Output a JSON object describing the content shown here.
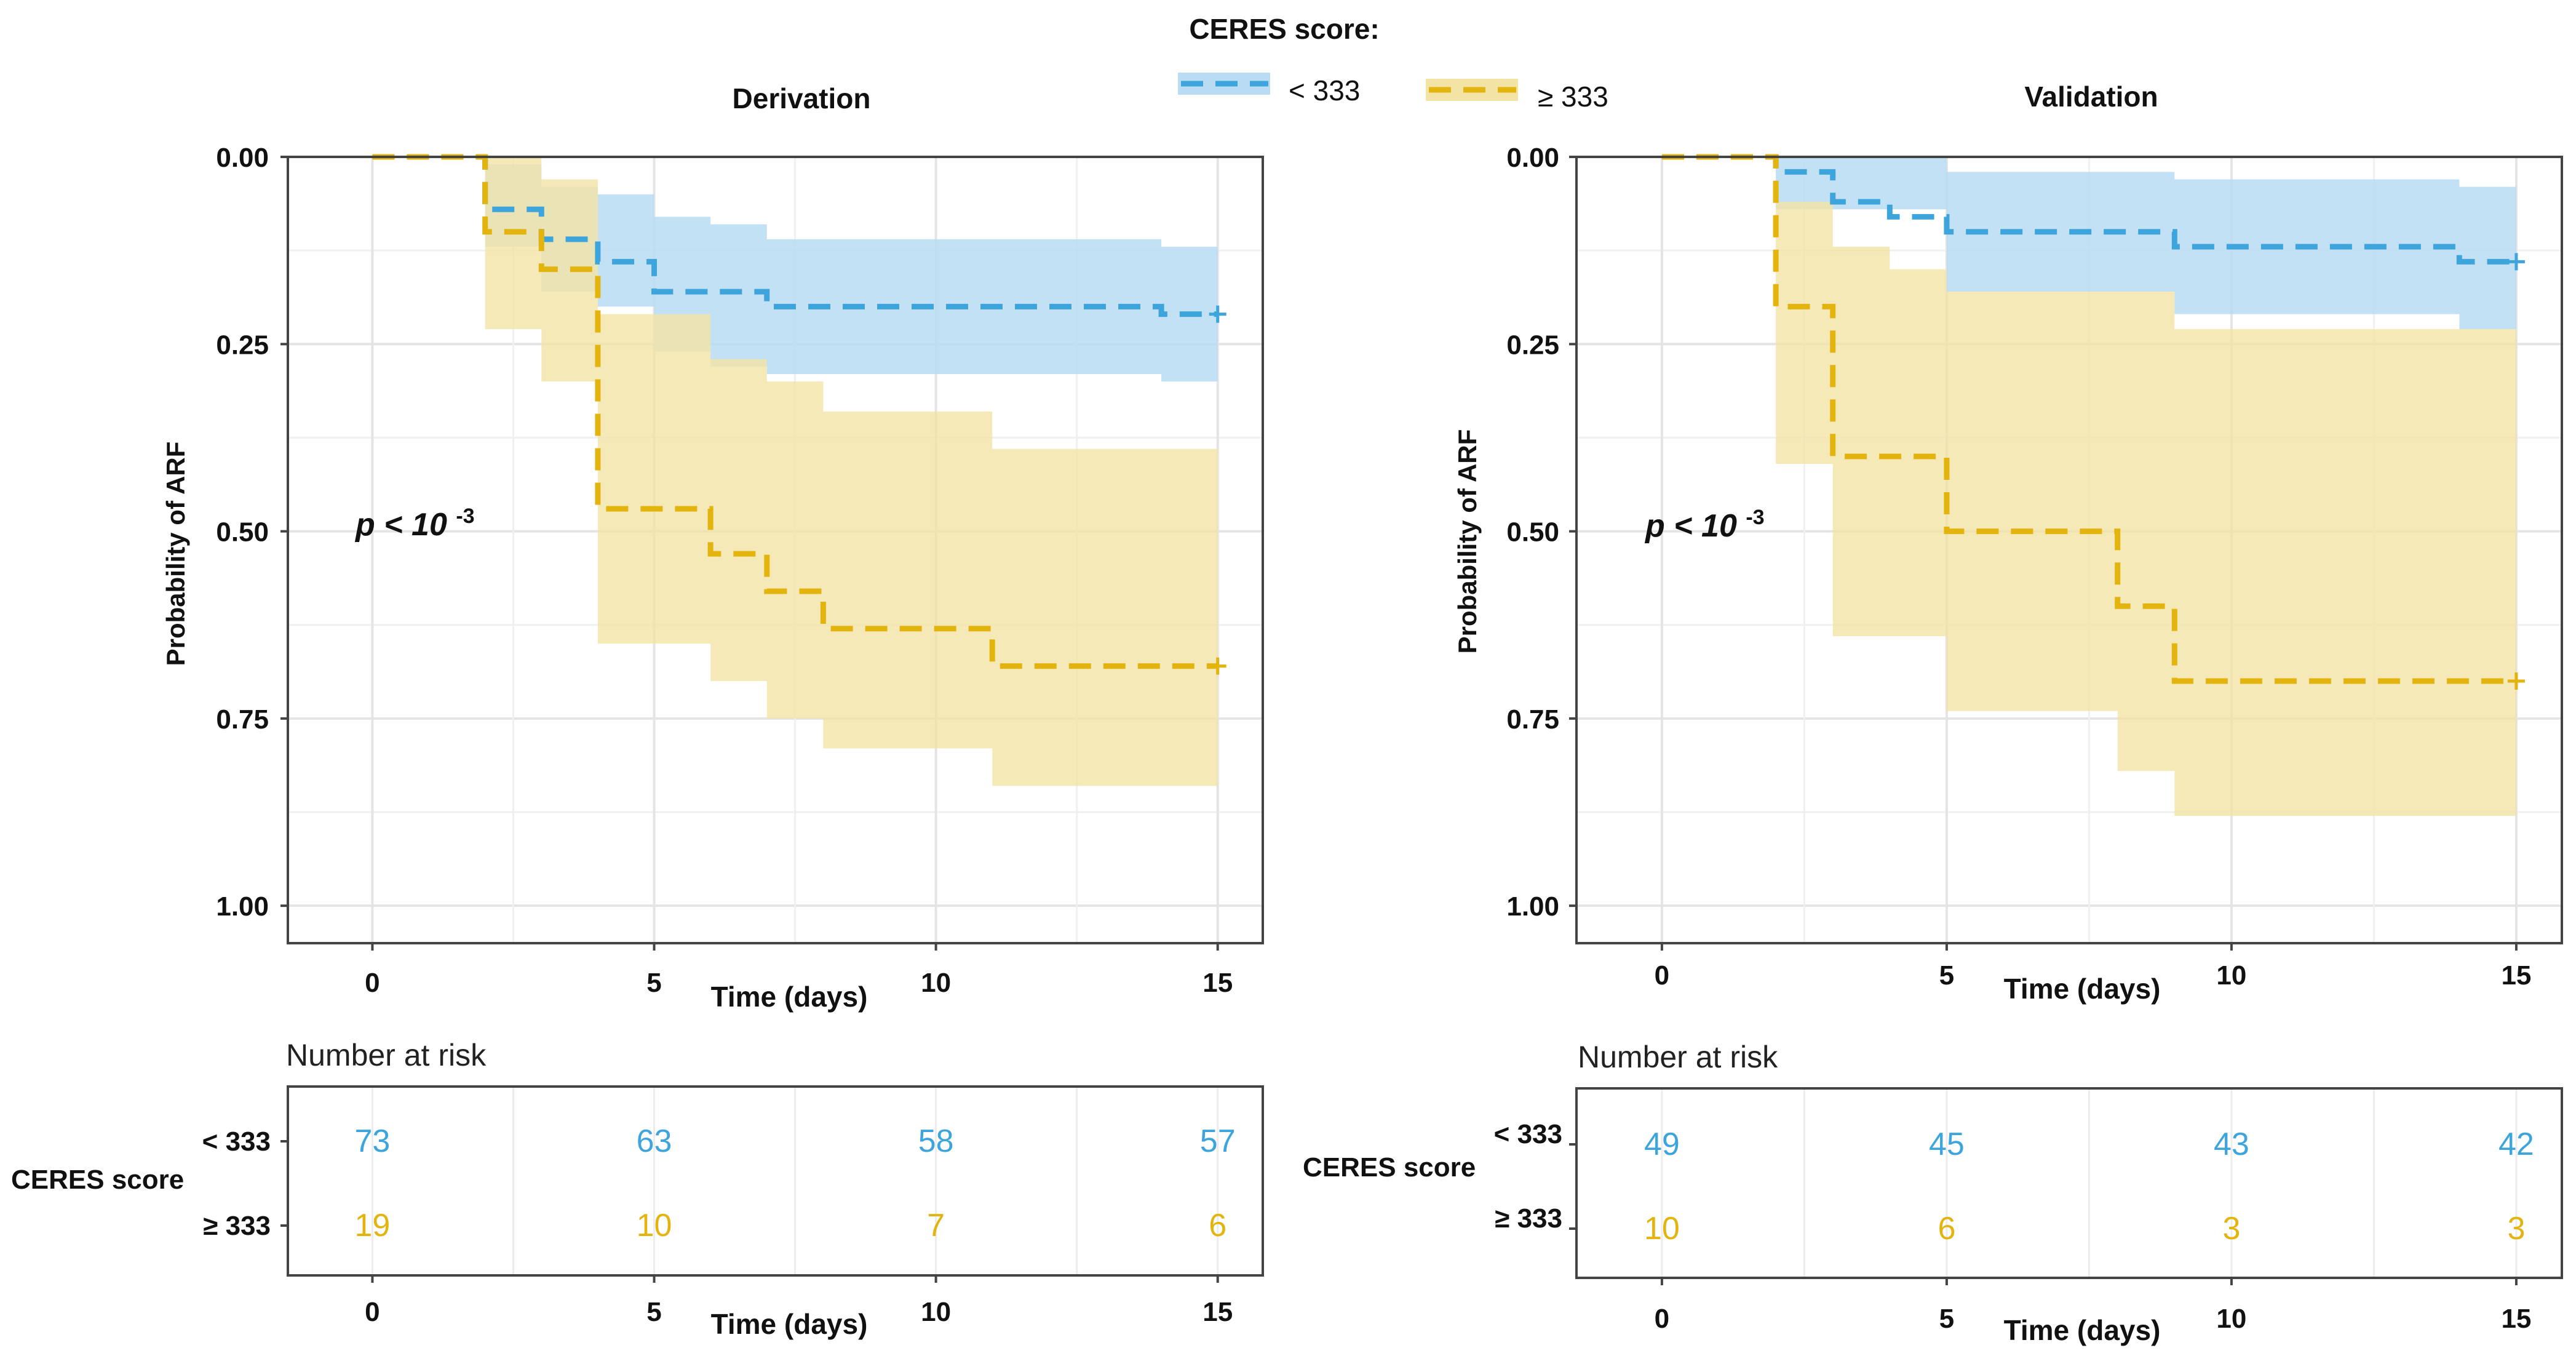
{
  "legend": {
    "title": "CERES score:",
    "items": [
      {
        "label": "< 333",
        "color": "#3ea5dc",
        "band": "#b9dcf2"
      },
      {
        "label": "≥ 333",
        "color": "#e4b40e",
        "band": "#f3e3a4"
      }
    ]
  },
  "chart_data": [
    {
      "type": "line",
      "subtype": "kaplan-meier step curve with confidence bands",
      "title": "Derivation",
      "xlabel": "Time (days)",
      "ylabel": "Probability of ARF",
      "xlim": [
        -1.5,
        15.8
      ],
      "ylim": [
        0,
        1.05
      ],
      "y_reversed": true,
      "x_ticks": [
        0,
        5,
        10,
        15
      ],
      "y_ticks": [
        0,
        0.25,
        0.5,
        0.75,
        1
      ],
      "y_tick_labels": [
        "0.00",
        "0.25",
        "0.50",
        "0.75",
        "1.00"
      ],
      "annotation": {
        "text": "p < 10",
        "exponent": "-3"
      },
      "series": [
        {
          "name": "< 333",
          "color": "#3ea5dc",
          "band": "#b9dcf2",
          "steps": [
            [
              0,
              0.0
            ],
            [
              2,
              0.07
            ],
            [
              3,
              0.11
            ],
            [
              4,
              0.14
            ],
            [
              5,
              0.18
            ],
            [
              7,
              0.2
            ],
            [
              14,
              0.21
            ],
            [
              15,
              0.21
            ]
          ],
          "ci": [
            [
              2,
              0.01,
              0.12
            ],
            [
              3,
              0.04,
              0.18
            ],
            [
              4,
              0.05,
              0.2
            ],
            [
              5,
              0.08,
              0.26
            ],
            [
              6,
              0.09,
              0.28
            ],
            [
              7,
              0.11,
              0.29
            ],
            [
              14,
              0.12,
              0.3
            ],
            [
              15,
              0.12,
              0.3
            ]
          ]
        },
        {
          "name": "≥ 333",
          "color": "#e4b40e",
          "band": "#f3e3a4",
          "steps": [
            [
              0,
              0.0
            ],
            [
              2,
              0.1
            ],
            [
              3,
              0.15
            ],
            [
              4,
              0.47
            ],
            [
              6,
              0.53
            ],
            [
              7,
              0.58
            ],
            [
              8,
              0.63
            ],
            [
              11,
              0.68
            ],
            [
              15,
              0.68
            ]
          ],
          "ci": [
            [
              2,
              0.0,
              0.23
            ],
            [
              3,
              0.03,
              0.3
            ],
            [
              4,
              0.21,
              0.65
            ],
            [
              6,
              0.27,
              0.7
            ],
            [
              7,
              0.3,
              0.75
            ],
            [
              8,
              0.34,
              0.79
            ],
            [
              11,
              0.39,
              0.84
            ],
            [
              15,
              0.39,
              0.84
            ]
          ]
        }
      ],
      "risk_table": {
        "title": "Number at risk",
        "group_label": "CERES score",
        "x_ticks": [
          0,
          5,
          10,
          15
        ],
        "xlabel": "Time (days)",
        "rows": [
          {
            "name": "< 333",
            "color": "#3ea5dc",
            "values": [
              "73",
              "63",
              "58",
              "57"
            ]
          },
          {
            "name": "≥ 333",
            "color": "#e4b40e",
            "values": [
              "19",
              "10",
              "7",
              "6"
            ]
          }
        ]
      }
    },
    {
      "type": "line",
      "subtype": "kaplan-meier step curve with confidence bands",
      "title": "Validation",
      "xlabel": "Time (days)",
      "ylabel": "Probability of ARF",
      "xlim": [
        -1.5,
        15.8
      ],
      "ylim": [
        0,
        1.05
      ],
      "y_reversed": true,
      "x_ticks": [
        0,
        5,
        10,
        15
      ],
      "y_ticks": [
        0,
        0.25,
        0.5,
        0.75,
        1
      ],
      "y_tick_labels": [
        "0.00",
        "0.25",
        "0.50",
        "0.75",
        "1.00"
      ],
      "annotation": {
        "text": "p < 10",
        "exponent": "-3"
      },
      "series": [
        {
          "name": "< 333",
          "color": "#3ea5dc",
          "band": "#b9dcf2",
          "steps": [
            [
              0,
              0.0
            ],
            [
              2,
              0.02
            ],
            [
              3,
              0.06
            ],
            [
              4,
              0.08
            ],
            [
              5,
              0.1
            ],
            [
              9,
              0.12
            ],
            [
              14,
              0.14
            ],
            [
              15,
              0.14
            ]
          ],
          "ci": [
            [
              2,
              0.0,
              0.07
            ],
            [
              5,
              0.02,
              0.18
            ],
            [
              9,
              0.03,
              0.21
            ],
            [
              14,
              0.04,
              0.23
            ],
            [
              15,
              0.04,
              0.23
            ]
          ]
        },
        {
          "name": "≥ 333",
          "color": "#e4b40e",
          "band": "#f3e3a4",
          "steps": [
            [
              0,
              0.0
            ],
            [
              2,
              0.2
            ],
            [
              3,
              0.4
            ],
            [
              5,
              0.5
            ],
            [
              8,
              0.6
            ],
            [
              9,
              0.7
            ],
            [
              15,
              0.7
            ]
          ],
          "ci": [
            [
              2,
              0.06,
              0.41
            ],
            [
              3,
              0.12,
              0.64
            ],
            [
              4,
              0.15,
              0.64
            ],
            [
              5,
              0.18,
              0.74
            ],
            [
              8,
              0.18,
              0.82
            ],
            [
              9,
              0.23,
              0.88
            ],
            [
              15,
              0.23,
              0.88
            ]
          ]
        }
      ],
      "risk_table": {
        "title": "Number at risk",
        "group_label": "CERES score",
        "x_ticks": [
          0,
          5,
          10,
          15
        ],
        "xlabel": "Time (days)",
        "rows": [
          {
            "name": "< 333",
            "color": "#3ea5dc",
            "values": [
              "49",
              "45",
              "43",
              "42"
            ]
          },
          {
            "name": "≥ 333",
            "color": "#e4b40e",
            "values": [
              "10",
              "6",
              "3",
              "3"
            ]
          }
        ]
      }
    }
  ]
}
